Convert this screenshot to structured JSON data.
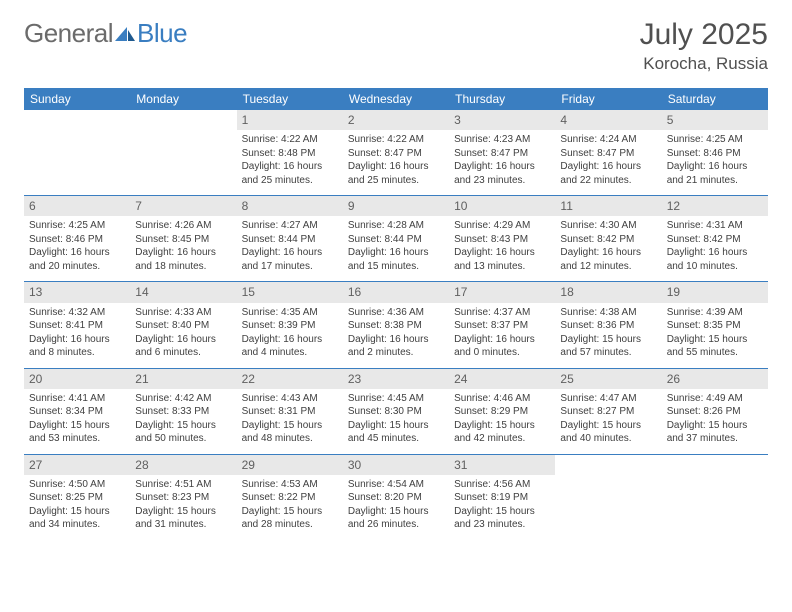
{
  "brand": {
    "part1": "General",
    "part2": "Blue"
  },
  "title": "July 2025",
  "location": "Korocha, Russia",
  "header_color": "#3a7ec1",
  "day_number_bg": "#e8e8e8",
  "weekdays": [
    "Sunday",
    "Monday",
    "Tuesday",
    "Wednesday",
    "Thursday",
    "Friday",
    "Saturday"
  ],
  "weeks": [
    [
      null,
      null,
      {
        "n": "1",
        "sunrise": "4:22 AM",
        "sunset": "8:48 PM",
        "daylight": "16 hours and 25 minutes."
      },
      {
        "n": "2",
        "sunrise": "4:22 AM",
        "sunset": "8:47 PM",
        "daylight": "16 hours and 25 minutes."
      },
      {
        "n": "3",
        "sunrise": "4:23 AM",
        "sunset": "8:47 PM",
        "daylight": "16 hours and 23 minutes."
      },
      {
        "n": "4",
        "sunrise": "4:24 AM",
        "sunset": "8:47 PM",
        "daylight": "16 hours and 22 minutes."
      },
      {
        "n": "5",
        "sunrise": "4:25 AM",
        "sunset": "8:46 PM",
        "daylight": "16 hours and 21 minutes."
      }
    ],
    [
      {
        "n": "6",
        "sunrise": "4:25 AM",
        "sunset": "8:46 PM",
        "daylight": "16 hours and 20 minutes."
      },
      {
        "n": "7",
        "sunrise": "4:26 AM",
        "sunset": "8:45 PM",
        "daylight": "16 hours and 18 minutes."
      },
      {
        "n": "8",
        "sunrise": "4:27 AM",
        "sunset": "8:44 PM",
        "daylight": "16 hours and 17 minutes."
      },
      {
        "n": "9",
        "sunrise": "4:28 AM",
        "sunset": "8:44 PM",
        "daylight": "16 hours and 15 minutes."
      },
      {
        "n": "10",
        "sunrise": "4:29 AM",
        "sunset": "8:43 PM",
        "daylight": "16 hours and 13 minutes."
      },
      {
        "n": "11",
        "sunrise": "4:30 AM",
        "sunset": "8:42 PM",
        "daylight": "16 hours and 12 minutes."
      },
      {
        "n": "12",
        "sunrise": "4:31 AM",
        "sunset": "8:42 PM",
        "daylight": "16 hours and 10 minutes."
      }
    ],
    [
      {
        "n": "13",
        "sunrise": "4:32 AM",
        "sunset": "8:41 PM",
        "daylight": "16 hours and 8 minutes."
      },
      {
        "n": "14",
        "sunrise": "4:33 AM",
        "sunset": "8:40 PM",
        "daylight": "16 hours and 6 minutes."
      },
      {
        "n": "15",
        "sunrise": "4:35 AM",
        "sunset": "8:39 PM",
        "daylight": "16 hours and 4 minutes."
      },
      {
        "n": "16",
        "sunrise": "4:36 AM",
        "sunset": "8:38 PM",
        "daylight": "16 hours and 2 minutes."
      },
      {
        "n": "17",
        "sunrise": "4:37 AM",
        "sunset": "8:37 PM",
        "daylight": "16 hours and 0 minutes."
      },
      {
        "n": "18",
        "sunrise": "4:38 AM",
        "sunset": "8:36 PM",
        "daylight": "15 hours and 57 minutes."
      },
      {
        "n": "19",
        "sunrise": "4:39 AM",
        "sunset": "8:35 PM",
        "daylight": "15 hours and 55 minutes."
      }
    ],
    [
      {
        "n": "20",
        "sunrise": "4:41 AM",
        "sunset": "8:34 PM",
        "daylight": "15 hours and 53 minutes."
      },
      {
        "n": "21",
        "sunrise": "4:42 AM",
        "sunset": "8:33 PM",
        "daylight": "15 hours and 50 minutes."
      },
      {
        "n": "22",
        "sunrise": "4:43 AM",
        "sunset": "8:31 PM",
        "daylight": "15 hours and 48 minutes."
      },
      {
        "n": "23",
        "sunrise": "4:45 AM",
        "sunset": "8:30 PM",
        "daylight": "15 hours and 45 minutes."
      },
      {
        "n": "24",
        "sunrise": "4:46 AM",
        "sunset": "8:29 PM",
        "daylight": "15 hours and 42 minutes."
      },
      {
        "n": "25",
        "sunrise": "4:47 AM",
        "sunset": "8:27 PM",
        "daylight": "15 hours and 40 minutes."
      },
      {
        "n": "26",
        "sunrise": "4:49 AM",
        "sunset": "8:26 PM",
        "daylight": "15 hours and 37 minutes."
      }
    ],
    [
      {
        "n": "27",
        "sunrise": "4:50 AM",
        "sunset": "8:25 PM",
        "daylight": "15 hours and 34 minutes."
      },
      {
        "n": "28",
        "sunrise": "4:51 AM",
        "sunset": "8:23 PM",
        "daylight": "15 hours and 31 minutes."
      },
      {
        "n": "29",
        "sunrise": "4:53 AM",
        "sunset": "8:22 PM",
        "daylight": "15 hours and 28 minutes."
      },
      {
        "n": "30",
        "sunrise": "4:54 AM",
        "sunset": "8:20 PM",
        "daylight": "15 hours and 26 minutes."
      },
      {
        "n": "31",
        "sunrise": "4:56 AM",
        "sunset": "8:19 PM",
        "daylight": "15 hours and 23 minutes."
      },
      null,
      null
    ]
  ],
  "labels": {
    "sunrise": "Sunrise:",
    "sunset": "Sunset:",
    "daylight": "Daylight:"
  }
}
